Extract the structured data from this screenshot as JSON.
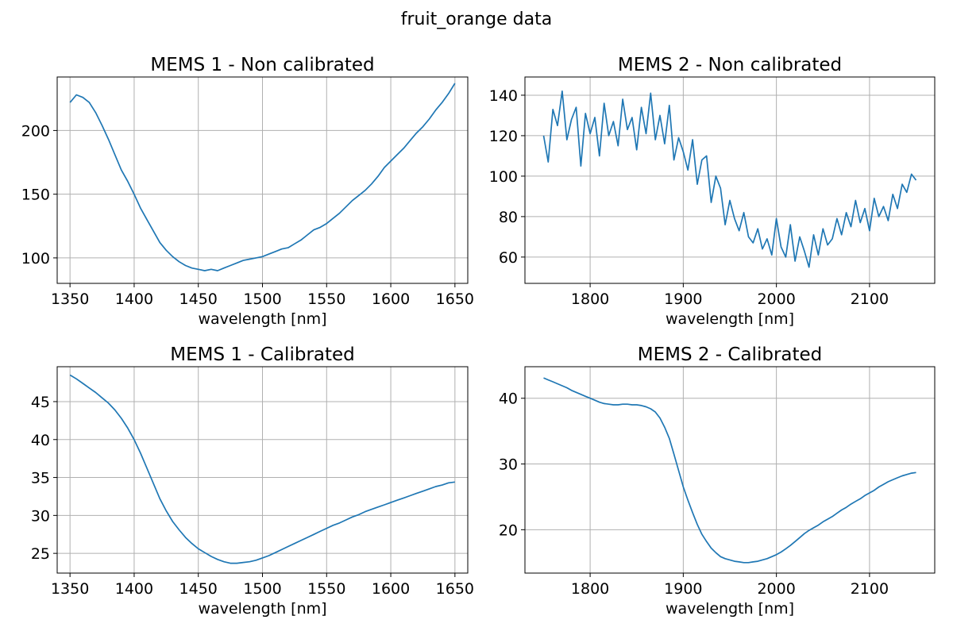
{
  "figure": {
    "suptitle": "fruit_orange data"
  },
  "chart_data": [
    {
      "type": "line",
      "title": "MEMS 1 - Non calibrated",
      "xlabel": "wavelength [nm]",
      "ylabel": "",
      "xlim": [
        1340,
        1660
      ],
      "ylim": [
        80,
        242
      ],
      "xticks": [
        1350,
        1400,
        1450,
        1500,
        1550,
        1600,
        1650
      ],
      "yticks": [
        100,
        150,
        200
      ],
      "grid": true,
      "color": "#1f77b4",
      "x": [
        1350,
        1355,
        1360,
        1365,
        1370,
        1375,
        1380,
        1385,
        1390,
        1395,
        1400,
        1405,
        1410,
        1415,
        1420,
        1425,
        1430,
        1435,
        1440,
        1445,
        1450,
        1455,
        1460,
        1465,
        1470,
        1475,
        1480,
        1485,
        1490,
        1495,
        1500,
        1505,
        1510,
        1515,
        1520,
        1525,
        1530,
        1535,
        1540,
        1545,
        1550,
        1555,
        1560,
        1565,
        1570,
        1575,
        1580,
        1585,
        1590,
        1595,
        1600,
        1605,
        1610,
        1615,
        1620,
        1625,
        1630,
        1635,
        1640,
        1645,
        1650
      ],
      "values": [
        222,
        228,
        226,
        222,
        214,
        204,
        193,
        181,
        169,
        160,
        150,
        139,
        130,
        121,
        112,
        106,
        101,
        97,
        94,
        92,
        91,
        90,
        91,
        90,
        92,
        94,
        96,
        98,
        99,
        100,
        101,
        103,
        105,
        107,
        108,
        111,
        114,
        118,
        122,
        124,
        127,
        131,
        135,
        140,
        145,
        149,
        153,
        158,
        164,
        171,
        176,
        181,
        186,
        192,
        198,
        203,
        209,
        216,
        222,
        229,
        237
      ]
    },
    {
      "type": "line",
      "title": "MEMS 2 - Non calibrated",
      "xlabel": "wavelength [nm]",
      "ylabel": "",
      "xlim": [
        1730,
        2170
      ],
      "ylim": [
        47,
        149
      ],
      "xticks": [
        1800,
        1900,
        2000,
        2100
      ],
      "yticks": [
        60,
        80,
        100,
        120,
        140
      ],
      "grid": true,
      "color": "#1f77b4",
      "x": [
        1750,
        1755,
        1760,
        1765,
        1770,
        1775,
        1780,
        1785,
        1790,
        1795,
        1800,
        1805,
        1810,
        1815,
        1820,
        1825,
        1830,
        1835,
        1840,
        1845,
        1850,
        1855,
        1860,
        1865,
        1870,
        1875,
        1880,
        1885,
        1890,
        1895,
        1900,
        1905,
        1910,
        1915,
        1920,
        1925,
        1930,
        1935,
        1940,
        1945,
        1950,
        1955,
        1960,
        1965,
        1970,
        1975,
        1980,
        1985,
        1990,
        1995,
        2000,
        2005,
        2010,
        2015,
        2020,
        2025,
        2030,
        2035,
        2040,
        2045,
        2050,
        2055,
        2060,
        2065,
        2070,
        2075,
        2080,
        2085,
        2090,
        2095,
        2100,
        2105,
        2110,
        2115,
        2120,
        2125,
        2130,
        2135,
        2140,
        2145,
        2150
      ],
      "values": [
        120,
        107,
        133,
        125,
        142,
        118,
        128,
        134,
        105,
        131,
        121,
        129,
        110,
        136,
        120,
        127,
        115,
        138,
        123,
        129,
        113,
        134,
        121,
        141,
        118,
        130,
        116,
        135,
        108,
        119,
        112,
        103,
        118,
        96,
        108,
        110,
        87,
        100,
        94,
        76,
        88,
        79,
        73,
        82,
        70,
        67,
        74,
        64,
        69,
        61,
        79,
        65,
        60,
        76,
        58,
        70,
        63,
        55,
        71,
        61,
        74,
        66,
        69,
        79,
        71,
        82,
        75,
        88,
        77,
        84,
        73,
        89,
        80,
        85,
        78,
        91,
        84,
        96,
        92,
        101,
        98
      ]
    },
    {
      "type": "line",
      "title": "MEMS 1 - Calibrated",
      "xlabel": "wavelength [nm]",
      "ylabel": "",
      "xlim": [
        1340,
        1660
      ],
      "ylim": [
        22.4,
        49.6
      ],
      "xticks": [
        1350,
        1400,
        1450,
        1500,
        1550,
        1600,
        1650
      ],
      "yticks": [
        25,
        30,
        35,
        40,
        45
      ],
      "grid": true,
      "color": "#1f77b4",
      "x": [
        1350,
        1355,
        1360,
        1365,
        1370,
        1375,
        1380,
        1385,
        1390,
        1395,
        1400,
        1405,
        1410,
        1415,
        1420,
        1425,
        1430,
        1435,
        1440,
        1445,
        1450,
        1455,
        1460,
        1465,
        1470,
        1475,
        1480,
        1485,
        1490,
        1495,
        1500,
        1505,
        1510,
        1515,
        1520,
        1525,
        1530,
        1535,
        1540,
        1545,
        1550,
        1555,
        1560,
        1565,
        1570,
        1575,
        1580,
        1585,
        1590,
        1595,
        1600,
        1605,
        1610,
        1615,
        1620,
        1625,
        1630,
        1635,
        1640,
        1645,
        1650
      ],
      "values": [
        48.5,
        48.0,
        47.4,
        46.8,
        46.2,
        45.5,
        44.8,
        43.9,
        42.8,
        41.5,
        40.0,
        38.2,
        36.2,
        34.2,
        32.2,
        30.6,
        29.2,
        28.1,
        27.1,
        26.3,
        25.6,
        25.1,
        24.6,
        24.2,
        23.9,
        23.7,
        23.7,
        23.8,
        23.9,
        24.1,
        24.4,
        24.7,
        25.1,
        25.5,
        25.9,
        26.3,
        26.7,
        27.1,
        27.5,
        27.9,
        28.3,
        28.7,
        29.0,
        29.4,
        29.8,
        30.1,
        30.5,
        30.8,
        31.1,
        31.4,
        31.7,
        32.0,
        32.3,
        32.6,
        32.9,
        33.2,
        33.5,
        33.8,
        34.0,
        34.3,
        34.4
      ]
    },
    {
      "type": "line",
      "title": "MEMS 2 - Calibrated",
      "xlabel": "wavelength [nm]",
      "ylabel": "",
      "xlim": [
        1730,
        2170
      ],
      "ylim": [
        13.4,
        44.8
      ],
      "xticks": [
        1800,
        1900,
        2000,
        2100
      ],
      "yticks": [
        20,
        30,
        40
      ],
      "grid": true,
      "color": "#1f77b4",
      "x": [
        1750,
        1755,
        1760,
        1765,
        1770,
        1775,
        1780,
        1785,
        1790,
        1795,
        1800,
        1805,
        1810,
        1815,
        1820,
        1825,
        1830,
        1835,
        1840,
        1845,
        1850,
        1855,
        1860,
        1865,
        1870,
        1875,
        1880,
        1885,
        1890,
        1895,
        1900,
        1905,
        1910,
        1915,
        1920,
        1925,
        1930,
        1935,
        1940,
        1945,
        1950,
        1955,
        1960,
        1965,
        1970,
        1975,
        1980,
        1985,
        1990,
        1995,
        2000,
        2005,
        2010,
        2015,
        2020,
        2025,
        2030,
        2035,
        2040,
        2045,
        2050,
        2055,
        2060,
        2065,
        2070,
        2075,
        2080,
        2085,
        2090,
        2095,
        2100,
        2105,
        2110,
        2115,
        2120,
        2125,
        2130,
        2135,
        2140,
        2145,
        2150
      ],
      "values": [
        43.1,
        42.8,
        42.5,
        42.2,
        41.9,
        41.6,
        41.2,
        40.9,
        40.6,
        40.3,
        40.0,
        39.7,
        39.4,
        39.2,
        39.1,
        39.0,
        39.0,
        39.1,
        39.1,
        39.0,
        39.0,
        38.9,
        38.7,
        38.4,
        37.9,
        37.0,
        35.6,
        33.9,
        31.5,
        29.0,
        26.5,
        24.5,
        22.6,
        20.8,
        19.3,
        18.2,
        17.2,
        16.5,
        15.9,
        15.6,
        15.4,
        15.2,
        15.1,
        15.0,
        15.0,
        15.1,
        15.2,
        15.4,
        15.6,
        15.9,
        16.2,
        16.6,
        17.1,
        17.6,
        18.2,
        18.8,
        19.4,
        19.9,
        20.3,
        20.7,
        21.2,
        21.6,
        22.0,
        22.5,
        23.0,
        23.4,
        23.9,
        24.3,
        24.7,
        25.2,
        25.6,
        26.0,
        26.5,
        26.9,
        27.3,
        27.6,
        27.9,
        28.2,
        28.4,
        28.6,
        28.7
      ]
    }
  ]
}
